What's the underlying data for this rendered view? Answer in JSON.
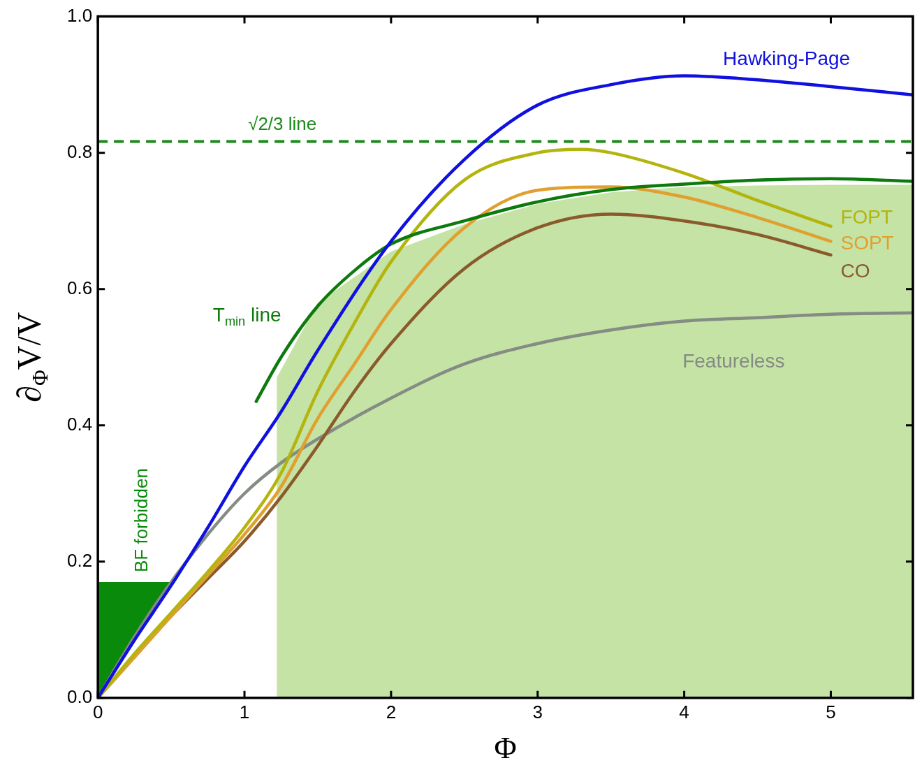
{
  "chart_data": {
    "type": "line",
    "xlabel": "Φ",
    "ylabel": "∂$_{Φ}$V/V",
    "xlim": [
      0,
      5.56
    ],
    "ylim": [
      0,
      1
    ],
    "xticks": [
      0,
      1,
      2,
      3,
      4,
      5
    ],
    "yticks": [
      {
        "value": 0,
        "label": "0.0"
      },
      {
        "value": 0.2,
        "label": "0.2"
      },
      {
        "value": 0.4,
        "label": "0.4"
      },
      {
        "value": 0.6,
        "label": "0.6"
      },
      {
        "value": 0.8,
        "label": "0.8"
      },
      {
        "value": 1,
        "label": "1.0"
      }
    ],
    "grid": false,
    "legend": false,
    "marker": "none",
    "ref_lines": [
      {
        "axis": "y",
        "value": 0.8165,
        "label": "√2/3 line",
        "color": "#1a8a1a",
        "line_style": "dashed"
      }
    ],
    "series": [
      {
        "type": "area",
        "color": "#c5e3a5",
        "x": [
          1.22,
          1.5,
          2,
          2.5,
          3,
          3.5,
          4,
          4.5,
          5,
          5.56
        ],
        "values": [
          0.47,
          0.58,
          0.655,
          0.695,
          0.725,
          0.742,
          0.75,
          0.752,
          0.753,
          0.753
        ]
      },
      {
        "type": "area",
        "name": "BF forbidden",
        "color": "#0a8a0a",
        "x": [
          0,
          0.25,
          0.52,
          0
        ],
        "values": [
          0,
          0.085,
          0.17,
          0.17
        ]
      },
      {
        "name": "Featureless",
        "color": "#848c84",
        "x": [
          0,
          0.25,
          0.5,
          0.75,
          1,
          1.25,
          1.5,
          2,
          2.5,
          3,
          3.5,
          4,
          4.5,
          5,
          5.56
        ],
        "values": [
          0,
          0.09,
          0.17,
          0.24,
          0.3,
          0.345,
          0.38,
          0.44,
          0.49,
          0.52,
          0.54,
          0.553,
          0.558,
          0.563,
          0.565
        ]
      },
      {
        "name": "CO",
        "color": "#8b5a2b",
        "x": [
          0,
          0.25,
          0.5,
          0.75,
          1,
          1.25,
          1.5,
          1.75,
          2,
          2.5,
          3,
          3.5,
          4,
          4.5,
          5
        ],
        "values": [
          0,
          0.06,
          0.12,
          0.175,
          0.23,
          0.295,
          0.37,
          0.45,
          0.52,
          0.63,
          0.69,
          0.71,
          0.7,
          0.68,
          0.65
        ]
      },
      {
        "name": "SOPT",
        "color": "#e0a030",
        "x": [
          0,
          0.25,
          0.5,
          0.75,
          1,
          1.25,
          1.5,
          1.75,
          2,
          2.5,
          3,
          3.5,
          4,
          4.5,
          5
        ],
        "values": [
          0,
          0.06,
          0.12,
          0.18,
          0.24,
          0.31,
          0.41,
          0.49,
          0.57,
          0.69,
          0.745,
          0.75,
          0.735,
          0.705,
          0.67
        ]
      },
      {
        "name": "FOPT",
        "color": "#b4b40e",
        "x": [
          0,
          0.25,
          0.5,
          0.75,
          1,
          1.25,
          1.5,
          1.75,
          2,
          2.5,
          3,
          3.3,
          3.5,
          4,
          4.5,
          5
        ],
        "values": [
          0,
          0.065,
          0.125,
          0.185,
          0.25,
          0.33,
          0.45,
          0.55,
          0.64,
          0.76,
          0.8,
          0.805,
          0.8,
          0.77,
          0.73,
          0.692
        ]
      },
      {
        "name": "T$_{min}$ line",
        "color": "#0d7a0d",
        "x": [
          1.08,
          1.25,
          1.5,
          1.75,
          2,
          2.5,
          3,
          3.5,
          4,
          4.5,
          5,
          5.56
        ],
        "values": [
          0.435,
          0.5,
          0.575,
          0.627,
          0.666,
          0.7,
          0.728,
          0.746,
          0.754,
          0.76,
          0.762,
          0.758
        ]
      },
      {
        "name": "Hawking-Page",
        "color": "#1010e0",
        "x": [
          0,
          0.25,
          0.5,
          0.75,
          1,
          1.25,
          1.5,
          2,
          2.5,
          3,
          3.5,
          4,
          4.5,
          5,
          5.56
        ],
        "values": [
          0,
          0.085,
          0.165,
          0.25,
          0.34,
          0.42,
          0.51,
          0.67,
          0.79,
          0.87,
          0.9,
          0.913,
          0.907,
          0.897,
          0.885
        ]
      }
    ]
  }
}
